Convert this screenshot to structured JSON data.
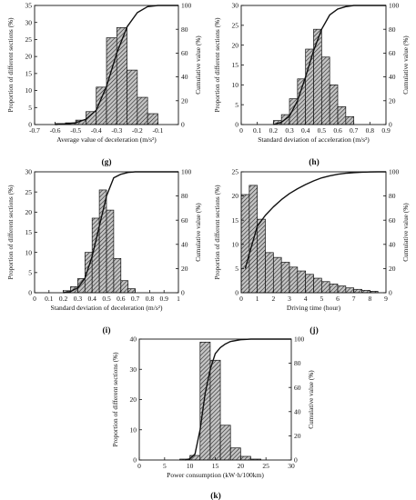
{
  "panels": [
    {
      "letter": "(g)",
      "chart_data": {
        "type": "bar",
        "xlabel": "Average value of deceleration (m/s²)",
        "ylabel": "Proportion of different sections (%)",
        "y2label": "Cumulative value (%)",
        "xlim": [
          -0.7,
          0
        ],
        "ylim": [
          0,
          35
        ],
        "y2lim": [
          0,
          100
        ],
        "xticks": [
          "-0.7",
          "-0.6",
          "-0.5",
          "-0.4",
          "-0.3",
          "-0.2",
          "-0.1"
        ],
        "xtick_values": [
          -0.7,
          -0.6,
          -0.5,
          -0.4,
          -0.3,
          -0.2,
          -0.1
        ],
        "yticks": [
          0,
          5,
          10,
          15,
          20,
          25,
          30,
          35
        ],
        "y2ticks": [
          0,
          20,
          40,
          60,
          80,
          100
        ],
        "bin_width": 0.05,
        "bin_starts": [
          -0.6,
          -0.55,
          -0.5,
          -0.45,
          -0.4,
          -0.35,
          -0.3,
          -0.25,
          -0.2,
          -0.15
        ],
        "values": [
          0.3,
          0.5,
          1.3,
          3.8,
          11.0,
          25.5,
          28.5,
          16.0,
          8.0,
          3.2
        ],
        "cumulative": {
          "x": [
            -0.6,
            -0.55,
            -0.5,
            -0.45,
            -0.4,
            -0.35,
            -0.3,
            -0.25,
            -0.2,
            -0.15,
            -0.1,
            0
          ],
          "y": [
            0,
            0.5,
            1.5,
            4.5,
            12,
            32,
            60,
            82,
            94,
            99,
            100,
            100
          ]
        }
      }
    },
    {
      "letter": "(h)",
      "chart_data": {
        "type": "bar",
        "xlabel": "Standard deviation of acceleration (m/s²)",
        "ylabel": "Proportion of different sections (%)",
        "y2label": "Cumulative value (%)",
        "xlim": [
          0,
          0.9
        ],
        "ylim": [
          0,
          30
        ],
        "y2lim": [
          0,
          100
        ],
        "xticks": [
          "0",
          "0.1",
          "0.2",
          "0.3",
          "0.4",
          "0.5",
          "0.6",
          "0.7",
          "0.8",
          "0.9"
        ],
        "xtick_values": [
          0,
          0.1,
          0.2,
          0.3,
          0.4,
          0.5,
          0.6,
          0.7,
          0.8,
          0.9
        ],
        "yticks": [
          0,
          5,
          10,
          15,
          20,
          25,
          30
        ],
        "y2ticks": [
          0,
          20,
          40,
          60,
          80,
          100
        ],
        "bin_width": 0.05,
        "bin_starts": [
          0.2,
          0.25,
          0.3,
          0.35,
          0.4,
          0.45,
          0.5,
          0.55,
          0.6,
          0.65
        ],
        "values": [
          1.0,
          2.5,
          6.5,
          11.5,
          19.0,
          24.0,
          17.0,
          10.0,
          4.5,
          2.0
        ],
        "cumulative": {
          "x": [
            0.2,
            0.25,
            0.3,
            0.35,
            0.4,
            0.45,
            0.5,
            0.55,
            0.6,
            0.65,
            0.7,
            0.9
          ],
          "y": [
            0,
            2,
            7,
            20,
            40,
            62,
            80,
            92,
            97,
            99,
            100,
            100
          ]
        }
      }
    },
    {
      "letter": "(i)",
      "chart_data": {
        "type": "bar",
        "xlabel": "Standard deviation of deceleration (m/s²)",
        "ylabel": "Proportion of different sections (%)",
        "y2label": "Cumulative value (%)",
        "xlim": [
          0,
          1.0
        ],
        "ylim": [
          0,
          30
        ],
        "y2lim": [
          0,
          100
        ],
        "xticks": [
          "0",
          "0.1",
          "0.2",
          "0.3",
          "0.4",
          "0.5",
          "0.6",
          "0.7",
          "0.8",
          "0.9",
          "1"
        ],
        "xtick_values": [
          0,
          0.1,
          0.2,
          0.3,
          0.4,
          0.5,
          0.6,
          0.7,
          0.8,
          0.9,
          1.0
        ],
        "yticks": [
          0,
          5,
          10,
          15,
          20,
          25,
          30
        ],
        "y2ticks": [
          0,
          20,
          40,
          60,
          80,
          100
        ],
        "bin_width": 0.05,
        "bin_starts": [
          0.2,
          0.25,
          0.3,
          0.35,
          0.4,
          0.45,
          0.5,
          0.55,
          0.6,
          0.65
        ],
        "values": [
          0.5,
          1.5,
          3.5,
          10.0,
          18.5,
          25.5,
          20.5,
          8.5,
          3.0,
          1.0
        ],
        "cumulative": {
          "x": [
            0.2,
            0.25,
            0.3,
            0.35,
            0.4,
            0.45,
            0.5,
            0.55,
            0.6,
            0.65,
            0.7,
            1.0
          ],
          "y": [
            0,
            1,
            4,
            12,
            30,
            55,
            80,
            95,
            98,
            99.5,
            100,
            100
          ]
        }
      }
    },
    {
      "letter": "(j)",
      "chart_data": {
        "type": "bar",
        "xlabel": "Driving time (hour)",
        "ylabel": "Proportion of different sections (%)",
        "y2label": "Cumulative value (%)",
        "xlim": [
          0,
          9
        ],
        "ylim": [
          0,
          25
        ],
        "y2lim": [
          0,
          100
        ],
        "xticks": [
          "0",
          "1",
          "2",
          "3",
          "4",
          "5",
          "6",
          "7",
          "8",
          "9"
        ],
        "xtick_values": [
          0,
          1,
          2,
          3,
          4,
          5,
          6,
          7,
          8,
          9
        ],
        "yticks": [
          0,
          5,
          10,
          15,
          20,
          25
        ],
        "y2ticks": [
          0,
          20,
          40,
          60,
          80,
          100
        ],
        "bin_width": 0.5,
        "bin_starts": [
          0,
          0.5,
          1.0,
          1.5,
          2.0,
          2.5,
          3.0,
          3.5,
          4.0,
          4.5,
          5.0,
          5.5,
          6.0,
          6.5,
          7.0,
          7.5,
          8.0
        ],
        "values": [
          20.3,
          22.2,
          15.2,
          8.3,
          7.3,
          6.3,
          5.3,
          4.5,
          3.8,
          3.0,
          2.3,
          1.8,
          1.4,
          1.0,
          0.7,
          0.5,
          0.3
        ],
        "cumulative": {
          "x": [
            0.25,
            0.5,
            1.0,
            1.5,
            2.0,
            2.5,
            3.0,
            3.5,
            4.0,
            4.5,
            5.0,
            5.5,
            6.0,
            6.5,
            7.0,
            7.5,
            8.0,
            8.5,
            9.0
          ],
          "y": [
            20,
            32,
            55,
            64,
            71,
            77,
            82,
            86,
            89.5,
            92.5,
            95,
            96.7,
            98,
            98.8,
            99.3,
            99.7,
            99.9,
            100,
            100
          ]
        }
      }
    },
    {
      "letter": "(k)",
      "chart_data": {
        "type": "bar",
        "xlabel": "Power consumption (kW·h/100km)",
        "ylabel": "Proportion of different sections (%)",
        "y2label": "Cumulative value (%)",
        "xlim": [
          0,
          30
        ],
        "ylim": [
          0,
          40
        ],
        "y2lim": [
          0,
          100
        ],
        "xticks": [
          "0",
          "5",
          "10",
          "15",
          "20",
          "25",
          "30"
        ],
        "xtick_values": [
          0,
          5,
          10,
          15,
          20,
          25,
          30
        ],
        "yticks": [
          0,
          10,
          20,
          30,
          40
        ],
        "y2ticks": [
          0,
          20,
          40,
          60,
          80,
          100
        ],
        "bin_width": 2,
        "bin_starts": [
          8,
          10,
          12,
          14,
          16,
          18,
          20,
          22
        ],
        "values": [
          0.3,
          1.5,
          39.0,
          33.0,
          11.5,
          4.0,
          1.2,
          0.3
        ],
        "cumulative": {
          "x": [
            9,
            10,
            11,
            12,
            13,
            14,
            15,
            16,
            17,
            18,
            20,
            22,
            30
          ],
          "y": [
            0,
            1,
            5,
            25,
            55,
            75,
            88,
            93,
            96,
            98,
            99.5,
            100,
            100
          ]
        }
      }
    }
  ]
}
